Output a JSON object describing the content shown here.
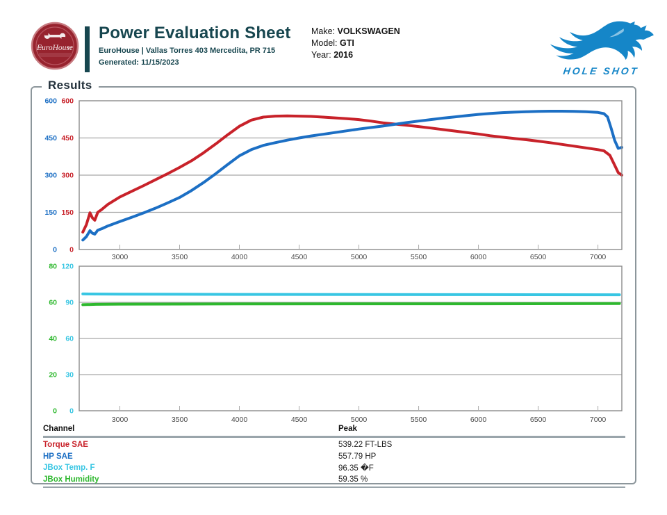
{
  "header": {
    "title": "Power Evaluation Sheet",
    "subtitle": "EuroHouse | Vallas Torres 403 Mercedita, PR 715",
    "generated": "Generated: 11/15/2023",
    "logo_text": "EuroHouse",
    "vehicle": {
      "make_label": "Make:",
      "make": "VOLKSWAGEN",
      "model_label": "Model:",
      "model": "GTI",
      "year_label": "Year:",
      "year": "2016"
    },
    "brand_name": "HOLE SHOT"
  },
  "results": {
    "section_title": "Results"
  },
  "colors": {
    "teal": "#17464f",
    "torque_red": "#c8222a",
    "hp_blue": "#1c6fc4",
    "temp_cyan": "#38c6e3",
    "humidity_green": "#2eb82e",
    "brand_blue": "#1586c8",
    "logo_red": "#97232e",
    "plot_border": "#8c8c8c",
    "grid": "#a8a8a8",
    "x_label": "#4a4a4a"
  },
  "chart_data": [
    {
      "type": "line",
      "title": "",
      "xlabel": "",
      "x_range": [
        2660,
        7200
      ],
      "x_ticks": [
        3000,
        3500,
        4000,
        4500,
        5000,
        5500,
        6000,
        6500,
        7000
      ],
      "grid": "horizontal",
      "legend_position": "none",
      "axes_left": [
        {
          "name": "HP SAE",
          "color": "#1c6fc4",
          "range": [
            0,
            600
          ],
          "ticks": [
            0,
            150,
            300,
            450,
            600
          ]
        },
        {
          "name": "Torque SAE",
          "color": "#c8222a",
          "range": [
            0,
            600
          ],
          "ticks": [
            0,
            150,
            300,
            450,
            600
          ]
        }
      ],
      "series": [
        {
          "name": "Torque SAE",
          "color": "#c8222a",
          "axis": 1,
          "peak": 539.22,
          "units": "FT-LBS",
          "points": [
            [
              2690,
              70
            ],
            [
              2720,
              100
            ],
            [
              2750,
              148
            ],
            [
              2770,
              128
            ],
            [
              2790,
              118
            ],
            [
              2815,
              150
            ],
            [
              2850,
              162
            ],
            [
              2900,
              182
            ],
            [
              3000,
              212
            ],
            [
              3100,
              235
            ],
            [
              3200,
              258
            ],
            [
              3300,
              282
            ],
            [
              3400,
              306
            ],
            [
              3500,
              331
            ],
            [
              3600,
              358
            ],
            [
              3700,
              390
            ],
            [
              3800,
              425
            ],
            [
              3900,
              462
            ],
            [
              4000,
              497
            ],
            [
              4100,
              522
            ],
            [
              4200,
              534
            ],
            [
              4300,
              538
            ],
            [
              4400,
              539
            ],
            [
              4500,
              538
            ],
            [
              4600,
              537
            ],
            [
              4700,
              534
            ],
            [
              4800,
              531
            ],
            [
              4900,
              528
            ],
            [
              5000,
              524
            ],
            [
              5100,
              518
            ],
            [
              5200,
              511
            ],
            [
              5300,
              506
            ],
            [
              5400,
              501
            ],
            [
              5500,
              496
            ],
            [
              5600,
              490
            ],
            [
              5700,
              484
            ],
            [
              5800,
              478
            ],
            [
              5900,
              472
            ],
            [
              6000,
              466
            ],
            [
              6100,
              459
            ],
            [
              6200,
              453
            ],
            [
              6300,
              448
            ],
            [
              6400,
              443
            ],
            [
              6500,
              437
            ],
            [
              6600,
              431
            ],
            [
              6700,
              424
            ],
            [
              6800,
              417
            ],
            [
              6900,
              410
            ],
            [
              7000,
              403
            ],
            [
              7050,
              398
            ],
            [
              7100,
              380
            ],
            [
              7140,
              340
            ],
            [
              7170,
              310
            ],
            [
              7200,
              300
            ]
          ]
        },
        {
          "name": "HP SAE",
          "color": "#1c6fc4",
          "axis": 0,
          "peak": 557.79,
          "units": "HP",
          "points": [
            [
              2690,
              38
            ],
            [
              2720,
              52
            ],
            [
              2750,
              76
            ],
            [
              2770,
              66
            ],
            [
              2790,
              62
            ],
            [
              2815,
              78
            ],
            [
              2850,
              84
            ],
            [
              2900,
              95
            ],
            [
              3000,
              113
            ],
            [
              3100,
              130
            ],
            [
              3200,
              148
            ],
            [
              3300,
              167
            ],
            [
              3400,
              188
            ],
            [
              3500,
              210
            ],
            [
              3600,
              238
            ],
            [
              3700,
              270
            ],
            [
              3800,
              305
            ],
            [
              3900,
              342
            ],
            [
              4000,
              378
            ],
            [
              4100,
              403
            ],
            [
              4200,
              420
            ],
            [
              4300,
              431
            ],
            [
              4400,
              441
            ],
            [
              4500,
              450
            ],
            [
              4600,
              458
            ],
            [
              4700,
              465
            ],
            [
              4800,
              472
            ],
            [
              4900,
              479
            ],
            [
              5000,
              486
            ],
            [
              5100,
              492
            ],
            [
              5200,
              498
            ],
            [
              5300,
              505
            ],
            [
              5400,
              512
            ],
            [
              5500,
              518
            ],
            [
              5600,
              524
            ],
            [
              5700,
              530
            ],
            [
              5800,
              535
            ],
            [
              5900,
              540
            ],
            [
              6000,
              545
            ],
            [
              6100,
              549
            ],
            [
              6200,
              552
            ],
            [
              6300,
              554
            ],
            [
              6400,
              556
            ],
            [
              6500,
              557
            ],
            [
              6600,
              558
            ],
            [
              6700,
              558
            ],
            [
              6800,
              557
            ],
            [
              6900,
              556
            ],
            [
              7000,
              553
            ],
            [
              7050,
              548
            ],
            [
              7080,
              535
            ],
            [
              7110,
              490
            ],
            [
              7140,
              440
            ],
            [
              7170,
              408
            ],
            [
              7200,
              412
            ]
          ]
        }
      ]
    },
    {
      "type": "line",
      "title": "",
      "xlabel": "",
      "x_range": [
        2660,
        7200
      ],
      "x_ticks": [
        3000,
        3500,
        4000,
        4500,
        5000,
        5500,
        6000,
        6500,
        7000
      ],
      "grid": "horizontal",
      "legend_position": "none",
      "axes_left": [
        {
          "name": "JBox Humidity",
          "color": "#2eb82e",
          "range": [
            0,
            80
          ],
          "ticks": [
            0,
            20,
            40,
            60,
            80
          ]
        },
        {
          "name": "JBox Temp. F",
          "color": "#38c6e3",
          "range": [
            0,
            120
          ],
          "ticks": [
            0,
            30,
            60,
            90,
            120
          ]
        }
      ],
      "series": [
        {
          "name": "JBox Temp. F",
          "color": "#38c6e3",
          "axis": 1,
          "peak": 96.35,
          "units": "�F",
          "points": [
            [
              2690,
              97.0
            ],
            [
              3000,
              96.8
            ],
            [
              4000,
              96.6
            ],
            [
              5000,
              96.5
            ],
            [
              6000,
              96.4
            ],
            [
              7180,
              96.3
            ]
          ]
        },
        {
          "name": "JBox Humidity",
          "color": "#2eb82e",
          "axis": 0,
          "peak": 59.35,
          "units": "%",
          "points": [
            [
              2690,
              58.7
            ],
            [
              2800,
              58.9
            ],
            [
              3000,
              59.0
            ],
            [
              4000,
              59.1
            ],
            [
              5000,
              59.2
            ],
            [
              6000,
              59.2
            ],
            [
              7180,
              59.3
            ]
          ]
        }
      ]
    }
  ],
  "results_table": {
    "col_channel": "Channel",
    "col_peak": "Peak",
    "rows": [
      {
        "channel": "Torque SAE",
        "peak": "539.22 FT-LBS",
        "color": "#c8222a"
      },
      {
        "channel": "HP SAE",
        "peak": "557.79 HP",
        "color": "#1c6fc4"
      },
      {
        "channel": "JBox Temp. F",
        "peak": "96.35 �F",
        "color": "#38c6e3"
      },
      {
        "channel": "JBox Humidity",
        "peak": "59.35 %",
        "color": "#2eb82e"
      }
    ]
  }
}
